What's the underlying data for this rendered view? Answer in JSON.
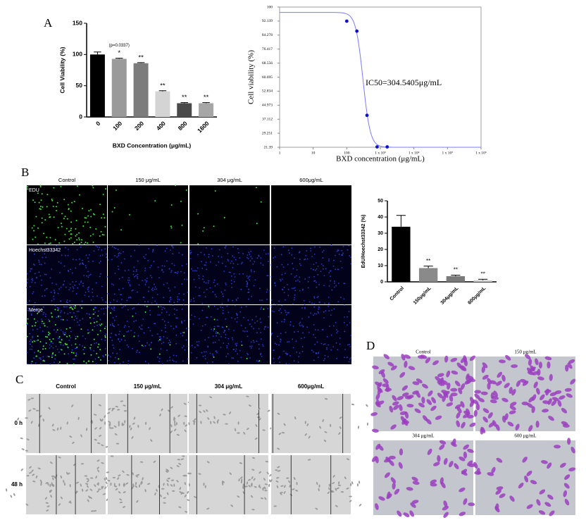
{
  "panel_labels": [
    "A",
    "B",
    "C",
    "D"
  ],
  "chart_data": [
    {
      "type": "bar",
      "ylabel": "Cell Viability (%)",
      "xlabel": "BXD Concentration (μg/mL)",
      "categories": [
        "0",
        "100",
        "200",
        "400",
        "800",
        "1600"
      ],
      "values": [
        100,
        93,
        86,
        41,
        22,
        22
      ],
      "errors": [
        4,
        1,
        1,
        1,
        1,
        1
      ],
      "significance": [
        null,
        "*",
        "**",
        "**",
        "**",
        "**"
      ],
      "annotation": "(p=0.0337)",
      "colors": [
        "#000000",
        "#9a9a9a",
        "#7c7c7c",
        "#d4d4d4",
        "#4a4a4a",
        "#a6a6a6"
      ],
      "ylim": [
        0,
        150
      ],
      "yticks": [
        0,
        50,
        100,
        150
      ]
    },
    {
      "type": "dose-response",
      "ylabel": "Cell viability (%)",
      "xlabel": "BXD concentration (μg/mL)",
      "x": [
        100,
        200,
        400,
        800,
        1600
      ],
      "values": [
        92.1,
        86.5,
        39.3,
        21.6,
        21.6
      ],
      "curve": {
        "top": 97,
        "bottom": 21.39,
        "ic50": 304.5405,
        "hill": 4
      },
      "annotation": "IC50=304.5405μg/mL",
      "color": "#1010d0",
      "curve_color": "#7a7aff",
      "log_x": true,
      "xlim": [
        1,
        1000000
      ],
      "xticks": [
        1,
        10,
        100,
        {
          "value": 1000,
          "label": "1 x 10³"
        },
        {
          "value": 10000,
          "label": "1 x 10⁴"
        },
        {
          "value": 100000,
          "label": "1 x 10⁵"
        },
        {
          "value": 1000000,
          "label": "1 x 10⁶"
        }
      ],
      "ylim": [
        21.39,
        100
      ],
      "yticks": [
        21.39,
        29.251,
        37.112,
        44.973,
        52.834,
        60.695,
        68.556,
        76.417,
        84.278,
        92.139,
        100
      ]
    },
    {
      "type": "bar",
      "ylabel": "EdU/Hoechst33342 (%)",
      "categories": [
        "Control",
        "150μg/mL",
        "304μg/mL",
        "600μg/mL"
      ],
      "values": [
        34,
        8.5,
        3.5,
        1
      ],
      "errors": [
        7,
        1.2,
        0.6,
        0.6
      ],
      "significance": [
        null,
        "**",
        "**",
        "**"
      ],
      "colors": [
        "#000000",
        "#8a8a8a",
        "#7a7a7a",
        "#d0d0d0"
      ],
      "ylim": [
        0,
        50
      ],
      "yticks": [
        0,
        10,
        20,
        30,
        40,
        50
      ]
    }
  ],
  "panel_b": {
    "columns": [
      "Control",
      "150 μg/mL",
      "304 μg/mL",
      "600μg/mL"
    ],
    "rows": [
      "EDU",
      "Hoechst33342",
      "Merge"
    ]
  },
  "panel_c": {
    "columns": [
      "Control",
      "150 μg/mL",
      "304 μg/mL",
      "600μg/mL"
    ],
    "rows": [
      "0 h",
      "48 h"
    ]
  },
  "panel_d": {
    "labels": [
      "Control",
      "150 μg/mL",
      "304 μg/mL",
      "600 μg/mL"
    ]
  }
}
